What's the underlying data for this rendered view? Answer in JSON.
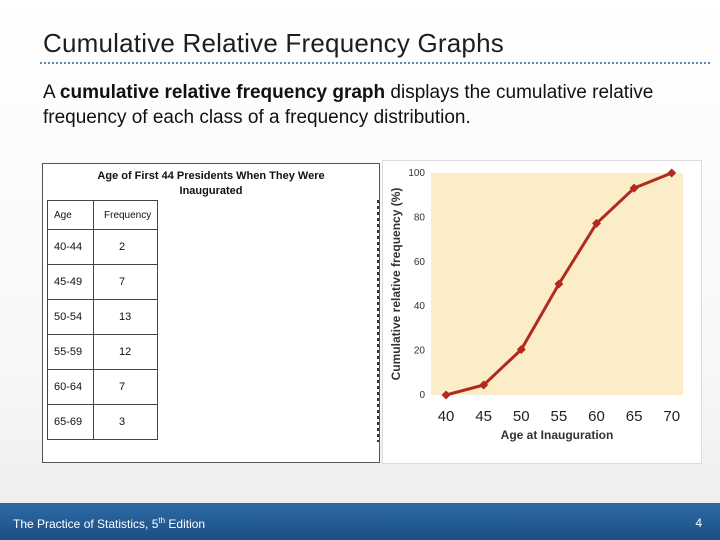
{
  "slide": {
    "title": "Cumulative Relative Frequency Graphs",
    "body_lead": "A ",
    "body_bold": "cumulative relative frequency graph",
    "body_rest": " displays the cumulative relative frequency of each class of a frequency distribution."
  },
  "table": {
    "title_line1": "Age of First 44 Presidents When They Were",
    "title_line2": "Inaugurated",
    "headers": [
      "Age",
      "Frequency"
    ],
    "rows": [
      {
        "age": "40-44",
        "freq": "2"
      },
      {
        "age": "45-49",
        "freq": "7"
      },
      {
        "age": "50-54",
        "freq": "13"
      },
      {
        "age": "55-59",
        "freq": "12"
      },
      {
        "age": "60-64",
        "freq": "7"
      },
      {
        "age": "65-69",
        "freq": "3"
      }
    ]
  },
  "chart_data": {
    "type": "line",
    "title": "",
    "xlabel": "Age at Inauguration",
    "ylabel": "Cumulative relative frequency (%)",
    "x": [
      40,
      45,
      50,
      55,
      60,
      65,
      70
    ],
    "series": [
      {
        "values": [
          0,
          4.5,
          20.5,
          50,
          77.3,
          93.2,
          100
        ]
      }
    ],
    "x_ticks": [
      "40",
      "45",
      "50",
      "55",
      "60",
      "65",
      "70"
    ],
    "y_ticks": [
      "0",
      "20",
      "40",
      "60",
      "80",
      "100"
    ],
    "xlim": [
      38,
      71.5
    ],
    "ylim": [
      0,
      100
    ],
    "grid": false,
    "plot_bg": "#faedc8",
    "line_color": "#b22a1e"
  },
  "footer": {
    "book_prefix": "The Practice of Statistics, 5",
    "book_sup": "th",
    "book_suffix": " Edition",
    "page": "4"
  }
}
